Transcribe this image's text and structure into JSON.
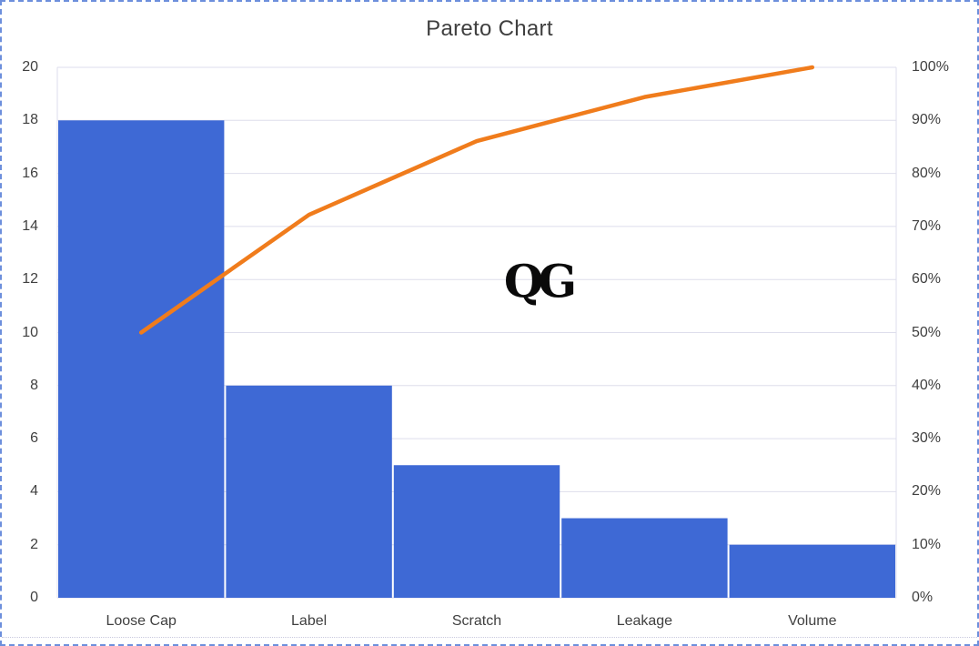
{
  "watermark": {
    "text": "QG"
  },
  "chart_data": {
    "type": "pareto",
    "title": "Pareto Chart",
    "categories": [
      "Loose Cap",
      "Label",
      "Scratch",
      "Leakage",
      "Volume"
    ],
    "bars": {
      "axis": "left",
      "values": [
        18,
        8,
        5,
        3,
        2
      ]
    },
    "cumulative_line": {
      "axis": "right",
      "values_percent": [
        50,
        72.2,
        86.1,
        94.4,
        100
      ]
    },
    "left_axis": {
      "min": 0,
      "max": 20,
      "step": 2,
      "tick_labels": [
        "0",
        "2",
        "4",
        "6",
        "8",
        "10",
        "12",
        "14",
        "16",
        "18",
        "20"
      ]
    },
    "right_axis": {
      "min": 0,
      "max": 100,
      "step": 10,
      "tick_labels": [
        "0%",
        "10%",
        "20%",
        "30%",
        "40%",
        "50%",
        "60%",
        "70%",
        "80%",
        "90%",
        "100%"
      ]
    },
    "grid": true,
    "legend_position": "none",
    "colors": {
      "bar": "#3e69d5",
      "line": "#f07c1c",
      "grid": "#dedeec",
      "axis_text": "#404040",
      "title_text": "#3f3f3f",
      "frame": "#6d8fdc",
      "watermark": "#0a0a0a"
    }
  }
}
